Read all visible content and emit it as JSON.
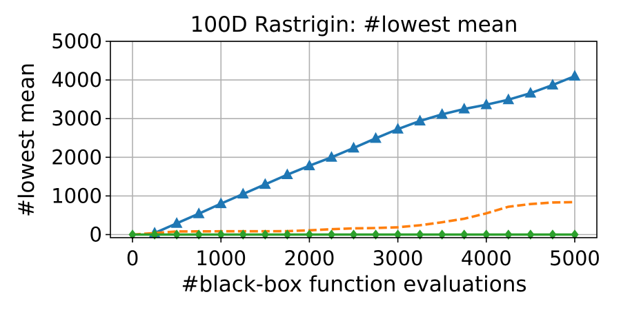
{
  "chart_data": {
    "type": "line",
    "title": "100D Rastrigin: #lowest mean",
    "xlabel": "#black-box function evaluations",
    "ylabel": "#lowest mean",
    "xlim": [
      -250,
      5250
    ],
    "ylim": [
      -80,
      5000
    ],
    "xticks": [
      0,
      1000,
      2000,
      3000,
      4000,
      5000
    ],
    "yticks": [
      0,
      1000,
      2000,
      3000,
      4000,
      5000
    ],
    "grid": true,
    "series": [
      {
        "color": "#1f77b4",
        "line_style": "solid",
        "marker": "triangle",
        "x": [
          250,
          500,
          750,
          1000,
          1250,
          1500,
          1750,
          2000,
          2250,
          2500,
          2750,
          3000,
          3250,
          3500,
          3750,
          4000,
          4250,
          4500,
          4750,
          5000
        ],
        "y": [
          40,
          290,
          540,
          800,
          1050,
          1300,
          1550,
          1780,
          2000,
          2240,
          2490,
          2730,
          2940,
          3110,
          3250,
          3360,
          3490,
          3660,
          3870,
          4100
        ]
      },
      {
        "color": "#ff7f0e",
        "line_style": "dashed",
        "marker": "none",
        "x": [
          0,
          250,
          500,
          1000,
          1500,
          1750,
          2000,
          2250,
          2500,
          2750,
          3000,
          3250,
          3500,
          3750,
          4000,
          4250,
          4500,
          4750,
          5000
        ],
        "y": [
          0,
          40,
          80,
          85,
          85,
          90,
          110,
          140,
          160,
          170,
          190,
          240,
          320,
          410,
          550,
          720,
          790,
          830,
          840
        ]
      },
      {
        "color": "#2ca02c",
        "line_style": "solid",
        "marker": "diamond",
        "x": [
          0,
          250,
          500,
          750,
          1000,
          1250,
          1500,
          1750,
          2000,
          2250,
          2500,
          2750,
          3000,
          3250,
          3500,
          3750,
          4000,
          4250,
          4500,
          4750,
          5000
        ],
        "y": [
          0,
          0,
          0,
          0,
          0,
          0,
          0,
          0,
          0,
          0,
          0,
          0,
          0,
          0,
          0,
          0,
          0,
          0,
          0,
          0,
          0
        ]
      }
    ]
  }
}
